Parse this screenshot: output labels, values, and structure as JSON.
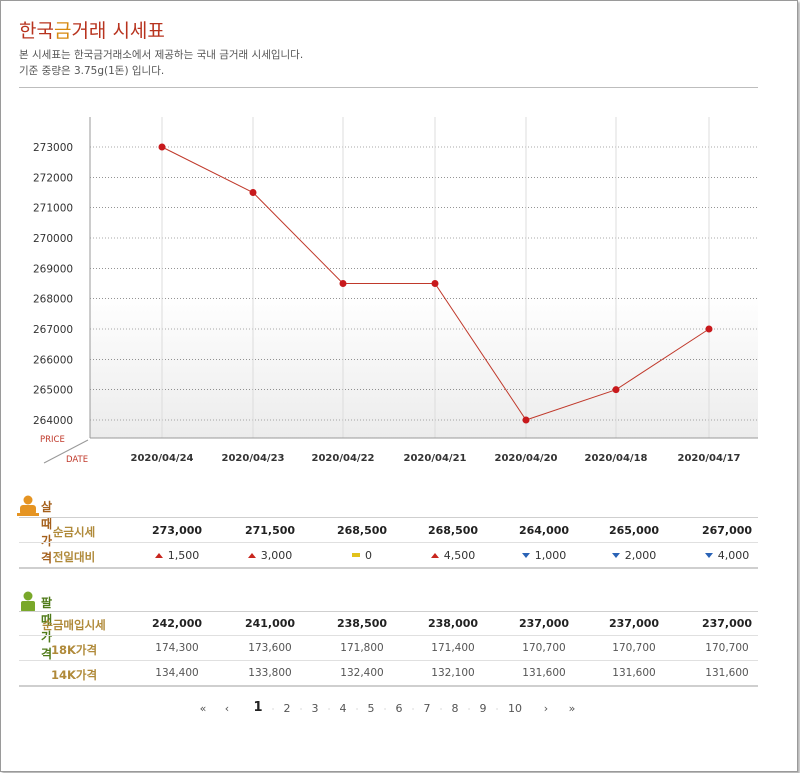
{
  "header": {
    "title_main": "한국",
    "title_hl": "금",
    "title_rest": "거래 시세표",
    "desc_line1": "본 시세표는 한국금거래소에서 제공하는 국내 금거래 시세입니다.",
    "desc_line2": "기준 중량은 3.75g(1돈) 입니다."
  },
  "chart_data": {
    "type": "line",
    "x": [
      "2020/04/24",
      "2020/04/23",
      "2020/04/22",
      "2020/04/21",
      "2020/04/20",
      "2020/04/18",
      "2020/04/17"
    ],
    "series": [
      {
        "values": [
          273000,
          271500,
          268500,
          268500,
          264000,
          265000,
          267000
        ]
      }
    ],
    "y_ticks": [
      273000,
      272000,
      271000,
      270000,
      269000,
      268000,
      267000,
      266000,
      265000,
      264000
    ],
    "ylabel": "PRICE",
    "xlabel": "DATE",
    "ylim": [
      263300,
      274000
    ],
    "grid": true,
    "line_color": "#c0392b",
    "point_color": "#c8191c"
  },
  "buy": {
    "section_label": "살 때 가격",
    "row1_label": "순금시세",
    "row1": [
      "273,000",
      "271,500",
      "268,500",
      "268,500",
      "264,000",
      "265,000",
      "267,000"
    ],
    "row2_label": "전일대비",
    "row2": [
      {
        "dir": "up",
        "v": "1,500"
      },
      {
        "dir": "up",
        "v": "3,000"
      },
      {
        "dir": "flat",
        "v": "0"
      },
      {
        "dir": "up",
        "v": "4,500"
      },
      {
        "dir": "down",
        "v": "1,000"
      },
      {
        "dir": "down",
        "v": "2,000"
      },
      {
        "dir": "down",
        "v": "4,000"
      }
    ]
  },
  "sell": {
    "section_label": "팔 때 가격",
    "row1_label": "순금매입시세",
    "row1": [
      "242,000",
      "241,000",
      "238,500",
      "238,000",
      "237,000",
      "237,000",
      "237,000"
    ],
    "row2_label": "18K가격",
    "row2": [
      "174,300",
      "173,600",
      "171,800",
      "171,400",
      "170,700",
      "170,700",
      "170,700"
    ],
    "row3_label": "14K가격",
    "row3": [
      "134,400",
      "133,800",
      "132,400",
      "132,100",
      "131,600",
      "131,600",
      "131,600"
    ]
  },
  "pagination": {
    "first": "«",
    "prev": "‹",
    "pages": [
      "1",
      "2",
      "3",
      "4",
      "5",
      "6",
      "7",
      "8",
      "9",
      "10"
    ],
    "current": "1",
    "next": "›",
    "last": "»"
  },
  "colors": {
    "title": "#b8331e",
    "title_highlight": "#d78a12",
    "buy_icon": "#e59422",
    "sell_icon": "#79a82a",
    "buy_label": "#a45f1b",
    "sell_label": "#4f7a18",
    "up": "#c8261e",
    "down": "#2a63b6",
    "flat": "#e2c21a"
  }
}
